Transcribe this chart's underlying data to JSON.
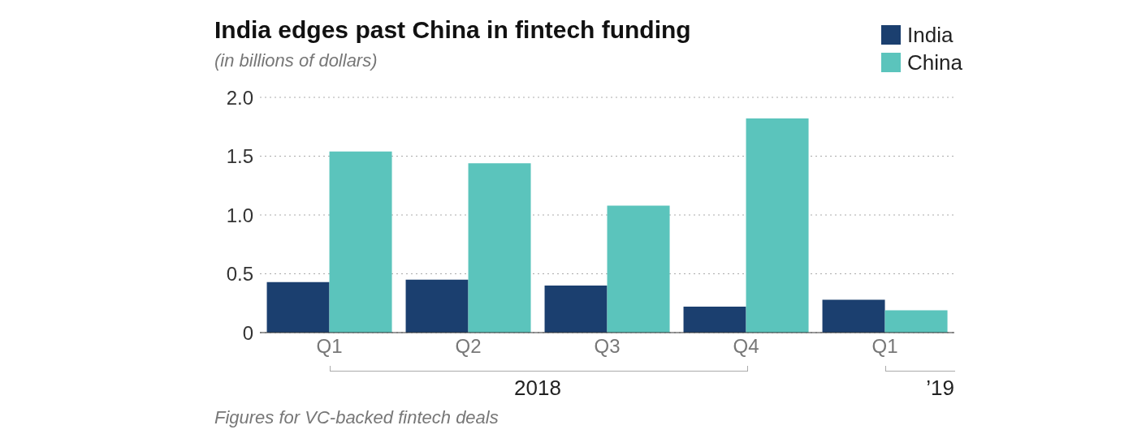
{
  "chart_data": {
    "type": "bar",
    "title": "India edges past China in fintech funding",
    "subtitle": "(in billions of dollars)",
    "categories": [
      "Q1",
      "Q2",
      "Q3",
      "Q4",
      "Q1"
    ],
    "series": [
      {
        "name": "India",
        "color": "#1b3f6f",
        "values": [
          0.43,
          0.45,
          0.4,
          0.22,
          0.28
        ]
      },
      {
        "name": "China",
        "color": "#5bc4bc",
        "values": [
          1.54,
          1.44,
          1.08,
          1.82,
          0.19
        ]
      }
    ],
    "ylim": [
      0,
      2
    ],
    "yticks": [
      0,
      0.5,
      {
        "value": 1,
        "label": "1.0"
      },
      1.5,
      {
        "value": 2,
        "label": "2.0"
      }
    ],
    "grid": "y",
    "legend": "top right",
    "annotations": [
      "2018",
      "’19",
      "Figures for VC-backed fintech deals"
    ]
  }
}
